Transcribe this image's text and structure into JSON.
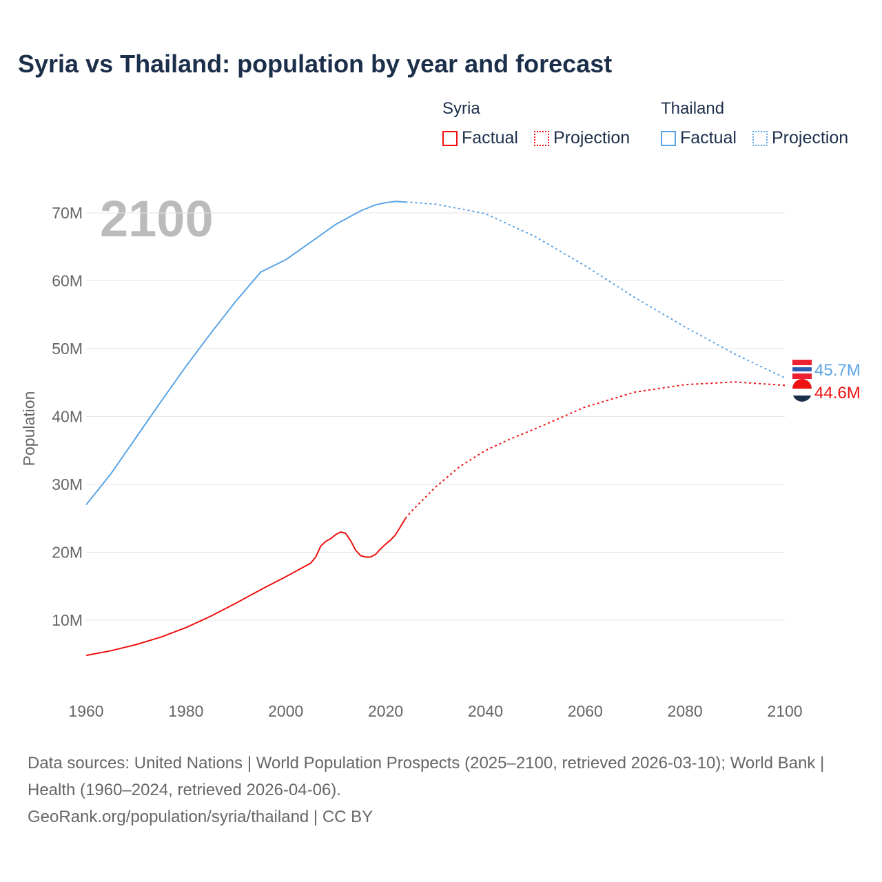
{
  "chart_data": {
    "type": "line",
    "title": "Syria vs Thailand: population by year and forecast",
    "ylabel": "Population",
    "xlabel": "",
    "xlim": [
      1960,
      2100
    ],
    "ylim": [
      0,
      75000000
    ],
    "xticks": [
      "1960",
      "1980",
      "2000",
      "2020",
      "2040",
      "2060",
      "2080",
      "2100"
    ],
    "yticks": [
      {
        "v": 10000000,
        "label": "10M"
      },
      {
        "v": 20000000,
        "label": "20M"
      },
      {
        "v": 30000000,
        "label": "30M"
      },
      {
        "v": 40000000,
        "label": "40M"
      },
      {
        "v": 50000000,
        "label": "50M"
      },
      {
        "v": 60000000,
        "label": "60M"
      },
      {
        "v": 70000000,
        "label": "70M"
      }
    ],
    "year_watermark": "2100",
    "legend": {
      "groups": [
        {
          "name": "Syria",
          "factual": "Factual",
          "projection": "Projection"
        },
        {
          "name": "Thailand",
          "factual": "Factual",
          "projection": "Projection"
        }
      ]
    },
    "series": [
      {
        "name": "Thailand",
        "color": "#5ba4e6",
        "end_label": "45.7M",
        "factual": {
          "x": [
            1960,
            1965,
            1970,
            1975,
            1980,
            1985,
            1990,
            1995,
            2000,
            2005,
            2010,
            2015,
            2018,
            2020,
            2022,
            2024
          ],
          "y": [
            27.0,
            31.6,
            36.9,
            42.2,
            47.4,
            52.3,
            57.0,
            61.3,
            63.1,
            65.7,
            68.3,
            70.3,
            71.2,
            71.5,
            71.7,
            71.6
          ]
        },
        "projection": {
          "x": [
            2024,
            2030,
            2040,
            2050,
            2060,
            2070,
            2080,
            2090,
            2100
          ],
          "y": [
            71.6,
            71.3,
            69.9,
            66.5,
            62.2,
            57.5,
            53.2,
            49.2,
            45.7
          ]
        }
      },
      {
        "name": "Syria",
        "color": "#ee1111",
        "end_label": "44.6M",
        "factual": {
          "x": [
            1960,
            1965,
            1970,
            1975,
            1980,
            1985,
            1990,
            1995,
            2000,
            2005,
            2006,
            2007,
            2008,
            2009,
            2010,
            2011,
            2012,
            2013,
            2014,
            2015,
            2016,
            2017,
            2018,
            2019,
            2020,
            2021,
            2022,
            2023,
            2024
          ],
          "y": [
            4.8,
            5.5,
            6.4,
            7.5,
            8.9,
            10.6,
            12.5,
            14.5,
            16.4,
            18.4,
            19.3,
            20.9,
            21.6,
            22.0,
            22.6,
            23.0,
            22.8,
            21.7,
            20.3,
            19.5,
            19.3,
            19.3,
            19.7,
            20.5,
            21.2,
            21.8,
            22.6,
            23.8,
            25.0
          ]
        },
        "projection": {
          "x": [
            2024,
            2025,
            2030,
            2035,
            2040,
            2045,
            2050,
            2060,
            2070,
            2080,
            2090,
            2100
          ],
          "y": [
            25.0,
            25.9,
            29.6,
            32.7,
            35.0,
            36.7,
            38.2,
            41.4,
            43.6,
            44.7,
            45.1,
            44.6
          ]
        }
      }
    ]
  },
  "footer": {
    "line1": "Data sources: United Nations | World Population Prospects (2025–2100, retrieved 2026-03-10); World Bank | Health (1960–2024, retrieved 2026-04-06).",
    "line2": "GeoRank.org/population/syria/thailand | CC BY"
  }
}
